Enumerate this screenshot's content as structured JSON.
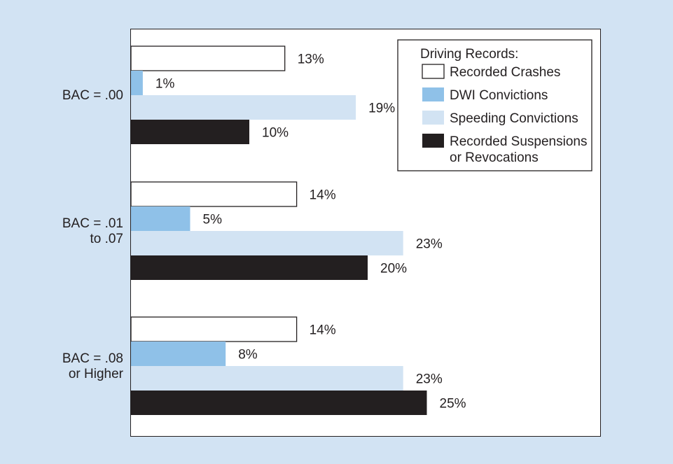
{
  "chart_data": {
    "type": "bar",
    "orientation": "horizontal",
    "categories": [
      [
        "BAC = .00"
      ],
      [
        "BAC = .01",
        "to .07"
      ],
      [
        "BAC = .08",
        "or Higher"
      ]
    ],
    "series": [
      {
        "name": "Recorded Crashes",
        "color": "#ffffff",
        "stroke": "#231f20",
        "values": [
          13,
          14,
          14
        ]
      },
      {
        "name": "DWI Convictions",
        "color": "#8fc1e8",
        "stroke": "#8fc1e8",
        "values": [
          1,
          5,
          8
        ]
      },
      {
        "name": "Speeding Convictions",
        "color": "#d2e3f3",
        "stroke": "#d2e3f3",
        "values": [
          19,
          23,
          23
        ]
      },
      {
        "name": "Recorded Suspensions or Revocations",
        "color": "#231f20",
        "stroke": "#231f20",
        "values": [
          10,
          20,
          25
        ]
      }
    ],
    "value_suffix": "%",
    "legend": {
      "title": "Driving Records:",
      "entries": [
        [
          "Recorded Crashes"
        ],
        [
          "DWI Convictions"
        ],
        [
          "Speeding Convictions"
        ],
        [
          "Recorded Suspensions",
          "or Revocations"
        ]
      ],
      "placement": "top-right"
    },
    "xlim": [
      0,
      25
    ],
    "grid": false
  }
}
